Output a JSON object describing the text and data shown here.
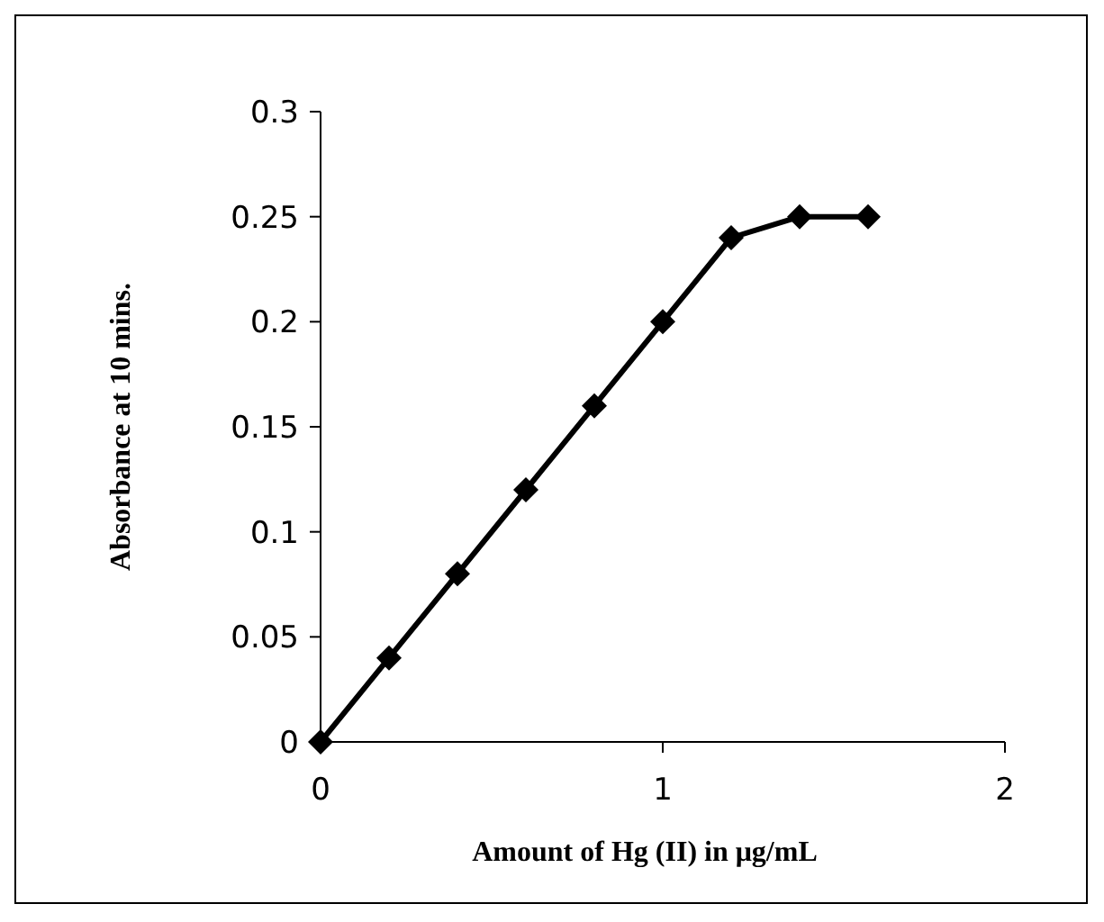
{
  "chart_data": {
    "type": "line",
    "xlabel": "Amount of Hg (II) in μg/mL",
    "ylabel": "Absorbance at 10 mins.",
    "x": [
      0,
      0.2,
      0.4,
      0.6,
      0.8,
      1,
      1.2,
      1.4,
      1.6
    ],
    "series": [
      {
        "color": "#000000",
        "values": [
          0,
          0.04,
          0.08,
          0.12,
          0.16,
          0.2,
          0.24,
          0.25,
          0.25
        ]
      }
    ],
    "xlim": [
      0,
      2
    ],
    "xticks": [
      0,
      1,
      2
    ],
    "ylim": [
      0,
      0.3
    ],
    "yticks": [
      0,
      0.05,
      0.1,
      0.15,
      0.2,
      0.25,
      0.3
    ],
    "grid": false,
    "marker": "diamond",
    "line_style": "solid"
  }
}
